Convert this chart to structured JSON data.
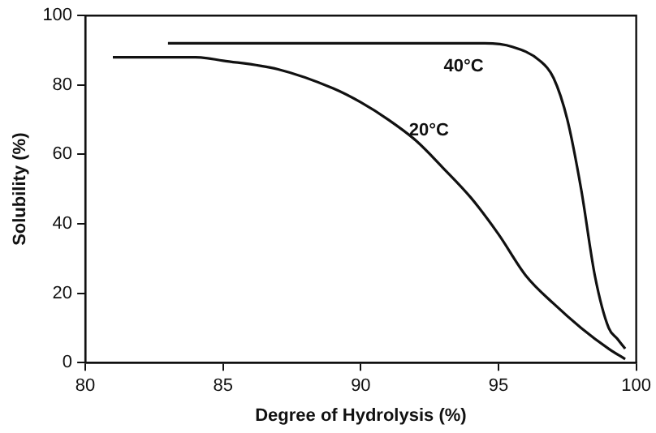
{
  "chart_data": {
    "type": "line",
    "xlabel": "Degree of Hydrolysis (%)",
    "ylabel": "Solubility (%)",
    "xlim": [
      80,
      100
    ],
    "xticks": [
      80,
      85,
      90,
      95,
      100
    ],
    "ylim": [
      0,
      100
    ],
    "yticks": [
      0,
      20,
      40,
      60,
      80,
      100
    ],
    "grid": false,
    "legend": false,
    "marker": "none",
    "line_style": "solid",
    "series": [
      {
        "name": "20°C",
        "color": "#111111",
        "x": [
          81,
          84,
          85,
          87,
          89,
          90,
          91,
          92,
          93,
          94,
          95,
          96,
          97,
          98,
          99,
          99.6
        ],
        "values": [
          88,
          88,
          87,
          84.5,
          79,
          75,
          70,
          64,
          56,
          47.5,
          37,
          25,
          17,
          10,
          4,
          1
        ]
      },
      {
        "name": "40°C",
        "color": "#111111",
        "x": [
          83,
          94.5,
          95.5,
          96.5,
          97,
          97.5,
          98,
          98.5,
          99,
          99.3,
          99.6
        ],
        "values": [
          92,
          92,
          91,
          87,
          82,
          70,
          50,
          25,
          10,
          7,
          4
        ]
      }
    ]
  }
}
